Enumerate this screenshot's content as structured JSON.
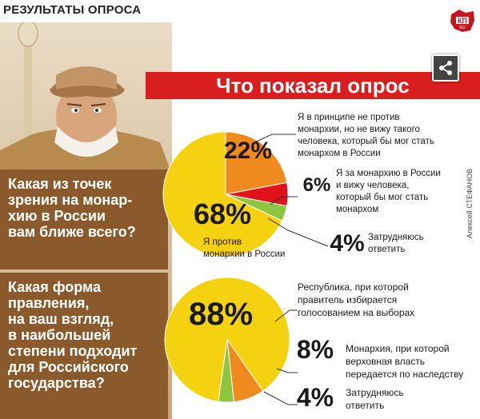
{
  "header": {
    "title": "РЕЗУЛЬТАТЫ ОПРОСА"
  },
  "banner": {
    "title": "Что показал опрос"
  },
  "credit": "Алексей СТЕФАНОВ",
  "logo": {
    "text": "КП",
    "sub": "RU"
  },
  "questions": [
    {
      "lines": [
        "Какая из точек",
        "зрения на монар-",
        "хию в России",
        "вам ближе всего?"
      ]
    },
    {
      "lines": [
        "Какая форма",
        "правления,",
        "на ваш взгляд,",
        "в наибольшей",
        "степени подходит",
        "для Российского",
        "государства?"
      ]
    }
  ],
  "colors": {
    "yellow": "#f5d20f",
    "orange": "#ef8a1f",
    "red": "#e0131b",
    "green": "#8cc63f",
    "brown": "#8a5a2c",
    "banner_red": "#d91e1e"
  },
  "chart_data": [
    {
      "type": "pie",
      "slices": [
        {
          "value": 22,
          "label": "22%",
          "text_lines": [
            "Я в принципе не против",
            "монархии, но не вижу такого",
            "человека, который бы мог стать",
            "монархом в России"
          ],
          "color": "#ef8a1f"
        },
        {
          "value": 6,
          "label": "6%",
          "text_lines": [
            "Я за монархию в России",
            "и вижу человека,",
            "который бы мог стать",
            "монархом"
          ],
          "color": "#e0131b"
        },
        {
          "value": 4,
          "label": "4%",
          "text_lines": [
            "Затрудняюсь",
            "ответить"
          ],
          "color": "#8cc63f"
        },
        {
          "value": 68,
          "label": "68%",
          "text_lines": [
            "Я против",
            "монархии в России"
          ],
          "color": "#f5d20f"
        }
      ]
    },
    {
      "type": "pie",
      "slices": [
        {
          "value": 88,
          "label": "88%",
          "text_lines": [
            "Республика, при которой",
            "правитель избирается",
            "голосованием на выборах"
          ],
          "color": "#f5d20f"
        },
        {
          "value": 8,
          "label": "8%",
          "text_lines": [
            "Монархия, при которой",
            "верховная власть",
            "передается по наследству"
          ],
          "color": "#ef8a1f"
        },
        {
          "value": 4,
          "label": "4%",
          "text_lines": [
            "Затрудняюсь",
            "ответить"
          ],
          "color": "#8cc63f"
        }
      ]
    }
  ]
}
